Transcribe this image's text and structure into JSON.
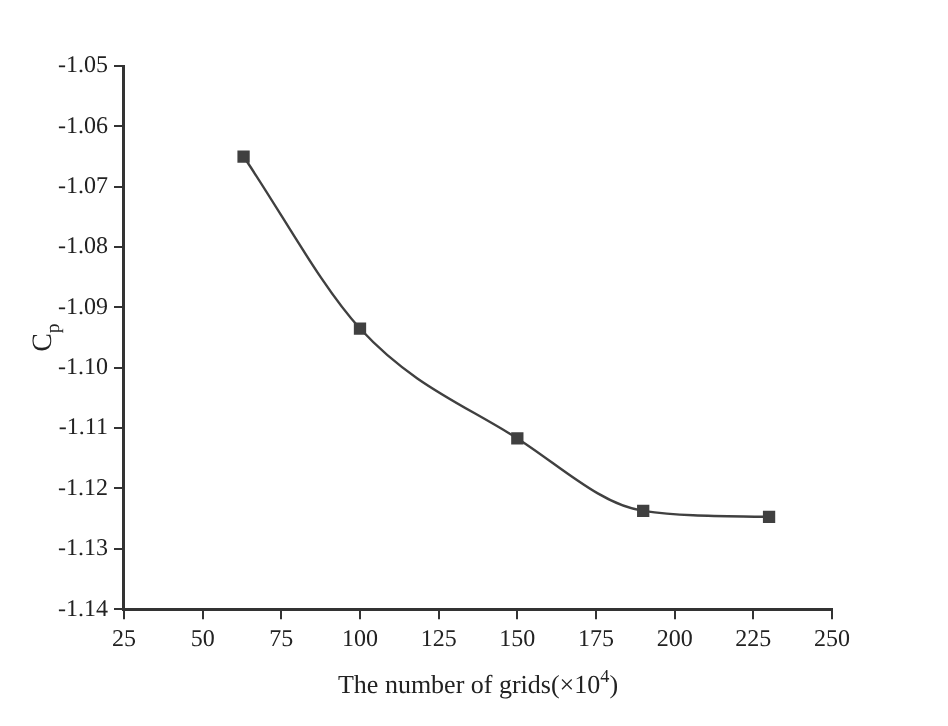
{
  "chart_data": {
    "type": "line",
    "xlabel": "The number of grids(×10$^{4}$)",
    "ylabel": "C$_{p}$",
    "x": [
      63,
      100,
      150,
      190,
      230
    ],
    "series": [
      {
        "color": "#404040",
        "values": [
          -1.065,
          -1.0935,
          -1.1117,
          -1.1237,
          -1.1247
        ]
      }
    ],
    "xlim": [
      25,
      250
    ],
    "xticks": [
      25,
      50,
      75,
      100,
      125,
      150,
      175,
      200,
      225,
      250
    ],
    "ylim": [
      -1.14,
      -1.05
    ],
    "yticks": [
      -1.14,
      -1.13,
      -1.12,
      -1.11,
      {
        "value": -1.1,
        "label": "-1.10"
      },
      -1.09,
      -1.08,
      -1.07,
      -1.06,
      -1.05
    ],
    "marker": "square",
    "line_style": "solid",
    "grid": false,
    "legend": false
  }
}
